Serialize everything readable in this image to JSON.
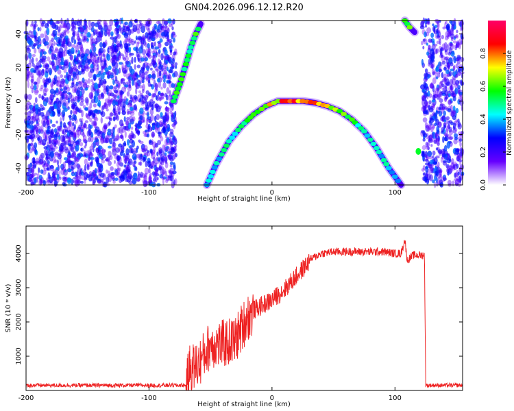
{
  "title": "GN04.2026.096.12.12.R20",
  "chart_data": [
    {
      "type": "heatmap",
      "xlabel": "Height of straight line (km)",
      "ylabel": "Frequency (Hz)",
      "xlim": [
        -200,
        155
      ],
      "ylim": [
        -50,
        48
      ],
      "x_ticks": [
        -200,
        -100,
        0,
        100
      ],
      "x_tick_labels": [
        "-200",
        "-100",
        "0",
        "100"
      ],
      "y_ticks": [
        -40,
        -20,
        0,
        20,
        40
      ],
      "y_tick_labels": [
        "-40",
        "-20",
        "0",
        "20",
        "40"
      ],
      "colorbar": {
        "label": "Normalized spectral amplitude",
        "range": [
          0,
          1
        ],
        "ticks": [
          0,
          0.2,
          0.4,
          0.6,
          0.8
        ],
        "tick_labels": [
          "0.0",
          "0.2",
          "0.4",
          "0.6",
          "0.8"
        ],
        "colors": [
          "#ffffff",
          "#6600ff",
          "#0000ff",
          "#00ffff",
          "#00ff00",
          "#ffff00",
          "#ff0000",
          "#ff0066"
        ]
      },
      "noise_regions": [
        {
          "x_range": [
            -200,
            -78
          ],
          "level": 0.25
        },
        {
          "x_range": [
            122,
            155
          ],
          "level": 0.25
        }
      ],
      "traces": [
        {
          "name": "arc",
          "x": [
            -53,
            -45,
            -35,
            -25,
            -15,
            -5,
            5,
            15,
            25,
            35,
            45,
            55,
            65,
            75,
            85,
            95,
            105
          ],
          "y": [
            -50,
            -37,
            -24,
            -15,
            -8,
            -3,
            0,
            0,
            0,
            -1,
            -3,
            -6,
            -11,
            -18,
            -28,
            -40,
            -50
          ]
        },
        {
          "name": "left-streak",
          "x": [
            -80,
            -75,
            -70,
            -66,
            -62,
            -58
          ],
          "y": [
            0,
            10,
            22,
            32,
            40,
            46
          ]
        },
        {
          "name": "right-streak",
          "x": [
            108,
            112,
            116
          ],
          "y": [
            48,
            44,
            41
          ]
        },
        {
          "name": "right-blip",
          "x": [
            119
          ],
          "y": [
            -30
          ]
        }
      ]
    },
    {
      "type": "line",
      "xlabel": "Height of straight line (km)",
      "ylabel": "SNR (10 * v/v)",
      "xlim": [
        -200,
        155
      ],
      "ylim": [
        0,
        4800
      ],
      "x_ticks": [
        -200,
        -100,
        0,
        100
      ],
      "x_tick_labels": [
        "-200",
        "-100",
        "0",
        "100"
      ],
      "y_ticks": [
        1000,
        2000,
        3000,
        4000
      ],
      "y_tick_labels": [
        "1000",
        "2000",
        "3000",
        "4000"
      ],
      "color": "#ee2222",
      "x": [
        -200,
        -70,
        -67,
        -60,
        -50,
        -40,
        -30,
        -20,
        -10,
        0,
        10,
        20,
        30,
        40,
        50,
        60,
        70,
        80,
        90,
        100,
        105,
        108,
        110,
        115,
        124,
        125,
        155
      ],
      "y": [
        150,
        150,
        800,
        900,
        1500,
        1500,
        1600,
        2300,
        2500,
        2700,
        3000,
        3400,
        3800,
        4000,
        4050,
        4050,
        4050,
        4050,
        4050,
        4000,
        4000,
        4400,
        3800,
        3950,
        3950,
        150,
        150
      ],
      "noise_amplitude": [
        {
          "x_range": [
            -200,
            -70
          ],
          "amp": 60
        },
        {
          "x_range": [
            -70,
            -15
          ],
          "amp": 900
        },
        {
          "x_range": [
            -15,
            30
          ],
          "amp": 350
        },
        {
          "x_range": [
            30,
            124
          ],
          "amp": 120
        },
        {
          "x_range": [
            124,
            155
          ],
          "amp": 60
        }
      ]
    }
  ]
}
